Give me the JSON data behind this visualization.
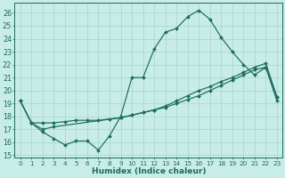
{
  "xlabel": "Humidex (Indice chaleur)",
  "bg_color": "#c8ece6",
  "grid_color": "#a8d4ce",
  "line_color": "#1a6b60",
  "xlim": [
    -0.5,
    23.5
  ],
  "ylim": [
    14.8,
    26.8
  ],
  "xticks": [
    0,
    1,
    2,
    3,
    4,
    5,
    6,
    7,
    8,
    9,
    10,
    11,
    12,
    13,
    14,
    15,
    16,
    17,
    18,
    19,
    20,
    21,
    22,
    23
  ],
  "yticks": [
    15,
    16,
    17,
    18,
    19,
    20,
    21,
    22,
    23,
    24,
    25,
    26
  ],
  "line1_x": [
    0,
    1,
    2,
    3,
    4,
    5,
    6,
    7,
    8,
    9,
    10,
    11,
    12,
    13,
    14,
    15,
    16,
    17,
    18,
    19,
    20,
    21,
    22,
    23
  ],
  "line1_y": [
    19.2,
    17.5,
    16.8,
    16.3,
    15.8,
    16.1,
    16.1,
    15.4,
    16.5,
    18.0,
    21.0,
    21.0,
    23.2,
    24.5,
    24.8,
    25.7,
    26.2,
    25.5,
    24.1,
    23.0,
    22.0,
    21.2,
    21.8,
    19.2
  ],
  "line2_x": [
    0,
    1,
    2,
    3,
    4,
    5,
    6,
    7,
    8,
    9,
    10,
    11,
    12,
    13,
    14,
    15,
    16,
    17,
    18,
    19,
    20,
    21,
    22,
    23
  ],
  "line2_y": [
    19.2,
    17.5,
    17.5,
    17.5,
    17.6,
    17.7,
    17.7,
    17.7,
    17.8,
    17.9,
    18.1,
    18.3,
    18.5,
    18.7,
    19.0,
    19.3,
    19.6,
    20.0,
    20.4,
    20.8,
    21.2,
    21.6,
    21.8,
    19.5
  ],
  "line3_x": [
    0,
    1,
    2,
    3,
    9,
    10,
    11,
    12,
    13,
    14,
    15,
    16,
    17,
    18,
    19,
    20,
    21,
    22,
    23
  ],
  "line3_y": [
    19.2,
    17.5,
    17.0,
    17.2,
    17.9,
    18.1,
    18.3,
    18.5,
    18.8,
    19.2,
    19.6,
    20.0,
    20.3,
    20.7,
    21.0,
    21.4,
    21.8,
    22.1,
    19.5
  ]
}
